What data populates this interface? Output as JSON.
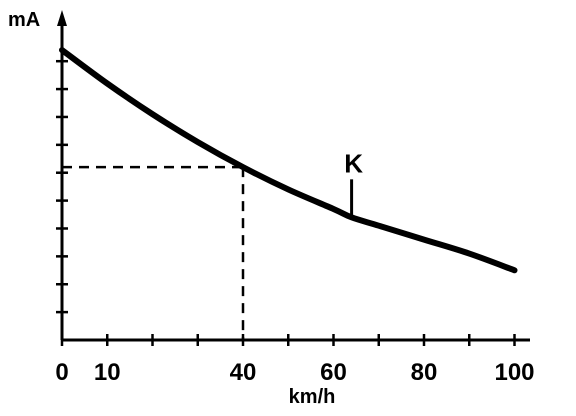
{
  "chart_data": {
    "type": "line",
    "xlabel": "km/h",
    "ylabel": "mA",
    "xlim": [
      0,
      100
    ],
    "x_ticks": [
      0,
      10,
      40,
      60,
      80,
      100
    ],
    "x_minor_ticks": [
      0,
      10,
      20,
      30,
      40,
      50,
      60,
      70,
      80,
      90,
      100
    ],
    "y_tick_count": 10,
    "series": [
      {
        "x": [
          0,
          10,
          20,
          30,
          40,
          50,
          60,
          64,
          70,
          80,
          90,
          100
        ],
        "y": [
          10.4,
          9.2,
          8.1,
          7.1,
          6.2,
          5.4,
          4.7,
          4.4,
          4.1,
          3.6,
          3.1,
          2.5
        ]
      }
    ],
    "guide": {
      "x": 40,
      "y": 6.2
    },
    "annotation": {
      "label": "K",
      "x": 64,
      "y": 4.4
    },
    "grid": false,
    "colors": {
      "line": "#000000",
      "background": "#ffffff"
    }
  }
}
